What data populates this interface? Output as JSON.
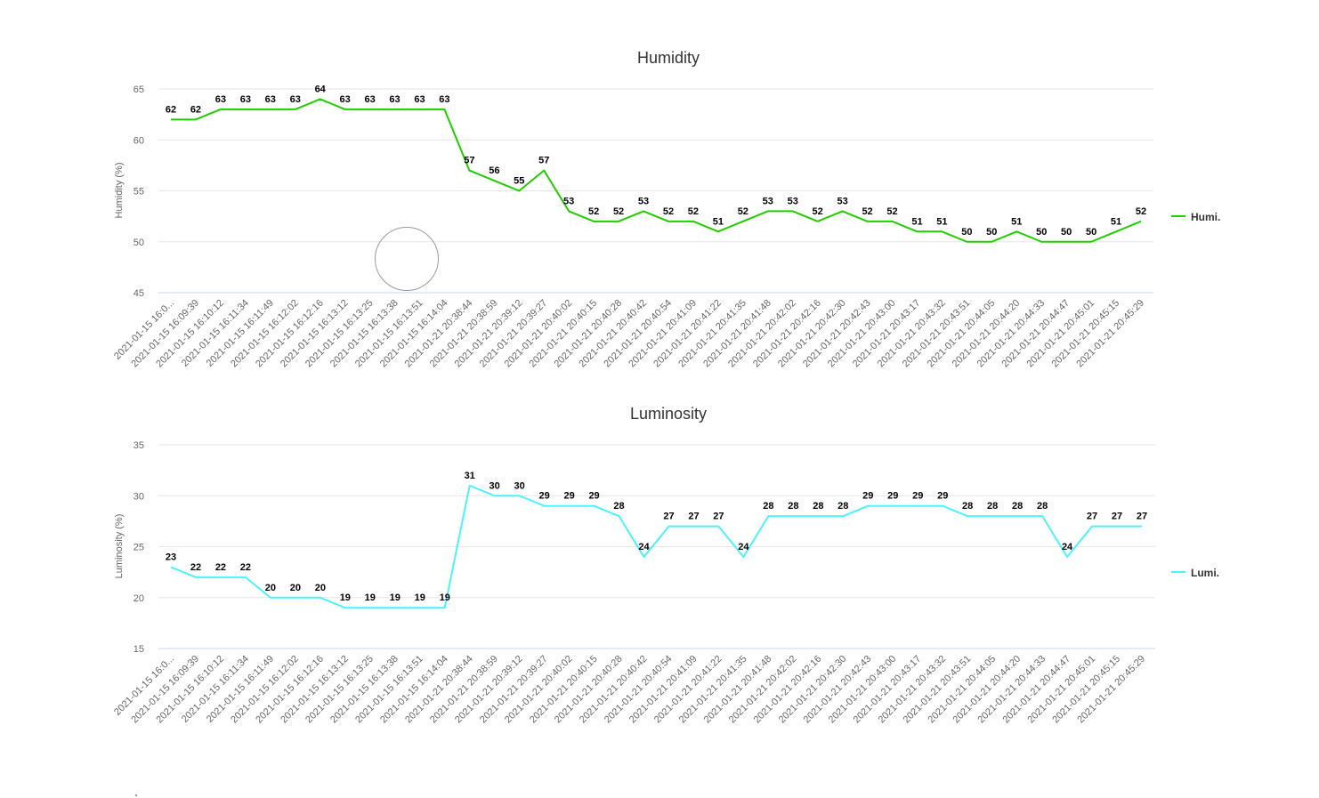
{
  "colors": {
    "humidity_line": "#22cc00",
    "luminosity_line": "#4df2ff"
  },
  "x_categories": [
    "2021-01-15 16:0...",
    "2021-01-15 16:09:39",
    "2021-01-15 16:10:12",
    "2021-01-15 16:11:34",
    "2021-01-15 16:11:49",
    "2021-01-15 16:12:02",
    "2021-01-15 16:12:16",
    "2021-01-15 16:13:12",
    "2021-01-15 16:13:25",
    "2021-01-15 16:13:38",
    "2021-01-15 16:13:51",
    "2021-01-15 16:14:04",
    "2021-01-21 20:38:44",
    "2021-01-21 20:38:59",
    "2021-01-21 20:39:12",
    "2021-01-21 20:39:27",
    "2021-01-21 20:40:02",
    "2021-01-21 20:40:15",
    "2021-01-21 20:40:28",
    "2021-01-21 20:40:42",
    "2021-01-21 20:40:54",
    "2021-01-21 20:41:09",
    "2021-01-21 20:41:22",
    "2021-01-21 20:41:35",
    "2021-01-21 20:41:48",
    "2021-01-21 20:42:02",
    "2021-01-21 20:42:16",
    "2021-01-21 20:42:30",
    "2021-01-21 20:42:43",
    "2021-01-21 20:43:00",
    "2021-01-21 20:43:17",
    "2021-01-21 20:43:32",
    "2021-01-21 20:43:51",
    "2021-01-21 20:44:05",
    "2021-01-21 20:44:20",
    "2021-01-21 20:44:33",
    "2021-01-21 20:44:47",
    "2021-01-21 20:45:01",
    "2021-01-21 20:45:15",
    "2021-01-21 20:45:29"
  ],
  "chart_data": [
    {
      "type": "line",
      "title": "Humidity",
      "ylabel": "Humidity (%)",
      "xlabel": "",
      "ylim": [
        45,
        65
      ],
      "yticks": [
        45,
        50,
        55,
        60,
        65
      ],
      "grid": true,
      "legend_position": "right",
      "series": [
        {
          "name": "Humi.",
          "values": [
            62,
            62,
            63,
            63,
            63,
            63,
            64,
            63,
            63,
            63,
            63,
            63,
            57,
            56,
            55,
            57,
            53,
            52,
            52,
            53,
            52,
            52,
            51,
            52,
            53,
            53,
            52,
            53,
            52,
            52,
            51,
            51,
            50,
            50,
            51,
            50,
            50,
            50,
            51,
            52
          ]
        }
      ]
    },
    {
      "type": "line",
      "title": "Luminosity",
      "ylabel": "Luminosity (%)",
      "xlabel": "",
      "ylim": [
        15,
        35
      ],
      "yticks": [
        15,
        20,
        25,
        30,
        35
      ],
      "grid": true,
      "legend_position": "right",
      "series": [
        {
          "name": "Lumi.",
          "values": [
            23,
            22,
            22,
            22,
            20,
            20,
            20,
            19,
            19,
            19,
            19,
            19,
            31,
            30,
            30,
            29,
            29,
            29,
            28,
            24,
            27,
            27,
            27,
            24,
            28,
            28,
            28,
            28,
            29,
            29,
            29,
            29,
            28,
            28,
            28,
            28,
            24,
            27,
            27,
            27
          ]
        }
      ]
    }
  ]
}
